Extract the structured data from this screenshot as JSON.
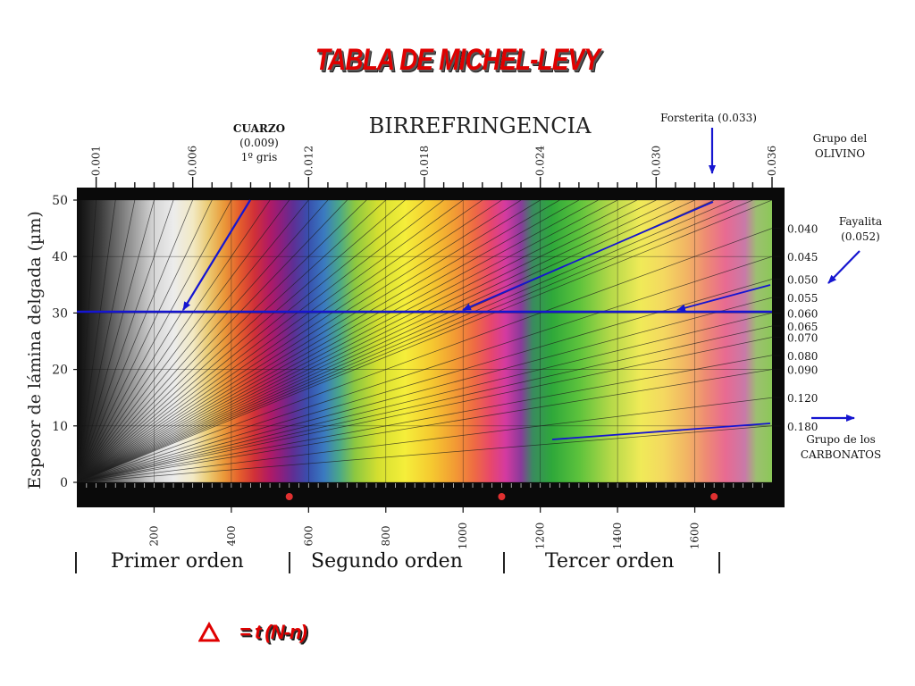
{
  "title": "TABLA DE MICHEL-LEVY",
  "formula": {
    "symbol": "Δ",
    "text": "= t (N-n)"
  },
  "orders": [
    "Primer orden",
    "Segundo orden",
    "Tercer orden"
  ],
  "annotations": {
    "cuarzo": [
      "CUARZO",
      "(0.009)",
      "1º gris"
    ],
    "forsterita": "Forsterita (0.033)",
    "olivino": [
      "Grupo del",
      "OLIVINO"
    ],
    "fayalita": [
      "Fayalita",
      "(0.052)"
    ],
    "carbonatos": [
      "Grupo de los",
      "CARBONATOS"
    ]
  },
  "colors": {
    "title": "#e00000",
    "annotation_arrows": "#1515d0",
    "markers": "#e03030"
  },
  "chart_data": {
    "type": "heatmap",
    "title": "BIRREFRINGENCIA",
    "xlabel": "",
    "ylabel": "Espesor de lámina delgada  (µm)",
    "xlim": [
      0,
      1800
    ],
    "ylim": [
      0,
      50
    ],
    "x_ticks": [
      200,
      400,
      600,
      800,
      1000,
      1200,
      1400,
      1600
    ],
    "y_ticks": [
      0,
      10,
      20,
      30,
      40,
      50
    ],
    "top_ticks": [
      "0.001",
      "0.006",
      "0.012",
      "0.018",
      "0.024",
      "0.030",
      "0.036"
    ],
    "right_ticks": [
      "0.040",
      "0.045",
      "0.050",
      "0.055",
      "0.060",
      "0.065",
      "0.070",
      "0.080",
      "0.090",
      "0.120",
      "0.180"
    ],
    "birefringence_lines": [
      0.001,
      0.002,
      0.003,
      0.004,
      0.005,
      0.006,
      0.007,
      0.008,
      0.009,
      0.01,
      0.011,
      0.012,
      0.013,
      0.014,
      0.015,
      0.016,
      0.017,
      0.018,
      0.019,
      0.02,
      0.021,
      0.022,
      0.023,
      0.024,
      0.025,
      0.026,
      0.027,
      0.028,
      0.029,
      0.03,
      0.031,
      0.032,
      0.033,
      0.034,
      0.035,
      0.036,
      0.04,
      0.045,
      0.05,
      0.055,
      0.06,
      0.065,
      0.07,
      0.08,
      0.09,
      0.12,
      0.18
    ],
    "reference_thickness": 30,
    "order_boundaries": [
      550,
      1100,
      1650
    ],
    "color_stops": [
      [
        0,
        "#0c0c0c"
      ],
      [
        60,
        "#3a3a3a"
      ],
      [
        130,
        "#8a8a8a"
      ],
      [
        200,
        "#d6d6d6"
      ],
      [
        250,
        "#ececec"
      ],
      [
        300,
        "#f2e9c4"
      ],
      [
        340,
        "#ebcb73"
      ],
      [
        380,
        "#ea9a3a"
      ],
      [
        420,
        "#e5602c"
      ],
      [
        460,
        "#d03038"
      ],
      [
        500,
        "#b01a66"
      ],
      [
        530,
        "#8a1f7e"
      ],
      [
        560,
        "#5f2e94"
      ],
      [
        600,
        "#3850ae"
      ],
      [
        640,
        "#3a7ac0"
      ],
      [
        680,
        "#4aa888"
      ],
      [
        720,
        "#8cc840"
      ],
      [
        780,
        "#d4df30"
      ],
      [
        850,
        "#f5ee3a"
      ],
      [
        920,
        "#f5c830"
      ],
      [
        980,
        "#f29a34"
      ],
      [
        1030,
        "#ee6a44"
      ],
      [
        1070,
        "#e8486a"
      ],
      [
        1110,
        "#d43aa0"
      ],
      [
        1150,
        "#8a3a9a"
      ],
      [
        1180,
        "#3a8a60"
      ],
      [
        1230,
        "#2ea83a"
      ],
      [
        1300,
        "#5cc23c"
      ],
      [
        1380,
        "#b2d848"
      ],
      [
        1460,
        "#f0ea58"
      ],
      [
        1520,
        "#f4d860"
      ],
      [
        1580,
        "#f2b464"
      ],
      [
        1630,
        "#ee8a74"
      ],
      [
        1680,
        "#e86a92"
      ],
      [
        1730,
        "#c87aa8"
      ],
      [
        1760,
        "#9cc070"
      ],
      [
        1800,
        "#8cc858"
      ]
    ]
  }
}
